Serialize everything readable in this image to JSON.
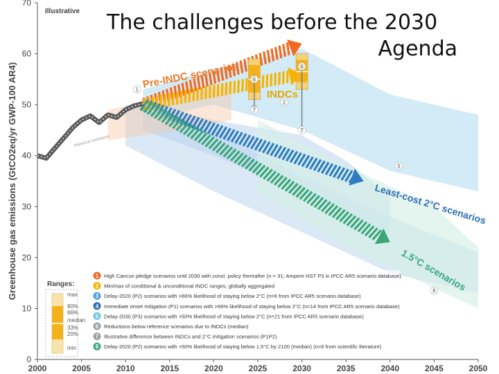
{
  "slide": {
    "title_line1": "The challenges before the 2030",
    "title_line2": "Agenda"
  },
  "chart_data": {
    "type": "line",
    "corner_label": "Illustrative",
    "ylabel": "Greenhouse gas emissions (GtCO2eq/yr GWP-100 AR4)",
    "xlabel": "",
    "xlim": [
      2000,
      2050
    ],
    "ylim": [
      0,
      70
    ],
    "x_ticks": [
      2000,
      2005,
      2010,
      2015,
      2020,
      2025,
      2030,
      2035,
      2040,
      2045,
      2050
    ],
    "y_ticks": [
      0,
      10,
      20,
      30,
      40,
      50,
      60,
      70
    ],
    "historical": {
      "name": "historical emissions",
      "x": [
        2000,
        2001,
        2002,
        2003,
        2004,
        2005,
        2006,
        2007,
        2008,
        2009,
        2010,
        2011,
        2012
      ],
      "y": [
        40,
        39.5,
        41.5,
        43.5,
        45.5,
        47,
        47.8,
        46.5,
        48,
        47.5,
        49,
        49.8,
        50.2
      ]
    },
    "series": [
      {
        "name": "Pre-INDC scenarios",
        "color": "#f26a21",
        "x": [
          2012,
          2030
        ],
        "y": [
          50,
          62
        ]
      },
      {
        "name": "INDCs",
        "color": "#f5b400",
        "x": [
          2012,
          2025,
          2030
        ],
        "y": [
          50,
          55.5,
          56
        ]
      },
      {
        "name": "Least-cost 2°C scenarios",
        "color": "#2e7dc0",
        "x": [
          2012,
          2037
        ],
        "y": [
          50,
          35
        ]
      },
      {
        "name": "1.5°C scenarios",
        "color": "#3aa77a",
        "x": [
          2012,
          2040
        ],
        "y": [
          50,
          23
        ]
      }
    ],
    "scenario_labels": [
      {
        "key": "pre",
        "text": "Pre-INDC scenarios"
      },
      {
        "key": "indc",
        "text": "INDCs"
      },
      {
        "key": "ls2",
        "text": "Least-cost 2°C scenarios"
      },
      {
        "key": "onefive",
        "text": "1.5°C scenarios"
      },
      {
        "key": "hist",
        "text": "Historical emissions"
      }
    ],
    "ranges_title": "Ranges:",
    "range_labels": [
      "max",
      "80%",
      "66%",
      "median",
      "33%",
      "20%",
      "min"
    ],
    "legend": [
      {
        "num": "1",
        "color": "#f26a21",
        "text": "High Cancun pledge scenarios until 2030 with const. policy thereafter (n = 31; Ampere HST P3 in IPCC AR5 scenario database)"
      },
      {
        "num": "2",
        "color": "#f5b400",
        "text": "Min/max of conditional & unconditional INDC ranges, globally aggregated"
      },
      {
        "num": "3",
        "color": "#4aa3d8",
        "text": "Delay-2020 (P2) scenarios with >66% likelihood of staying below 2°C (n=6 from IPCC AR5 scenario database)"
      },
      {
        "num": "4",
        "color": "#2e6fb5",
        "text": "Immediate onset mitigation (P1) scenarios with >66% likelihood of staying below 2°C (n=14 from IPCC AR5 scenario database)"
      },
      {
        "num": "5",
        "color": "#6bc3e6",
        "text": "Delay-2030 (P3) scenarios with >50% likelihood of staying below 2°C (n=21 from IPCC AR5 scenario database)"
      },
      {
        "num": "6",
        "color": "#9aa0a6",
        "text": "Reductions below reference scenarios due to INDCs (median)"
      },
      {
        "num": "7",
        "color": "#9aa0a6",
        "text": "Illustrative difference between INDCs and 2°C mitigation scenarios (P1P2)"
      },
      {
        "num": "8",
        "color": "#3aa77a",
        "text": "Delay-2020 (P2) scenarios with >50% likelihood of staying below 1.5°C by 2100 (median) (n=6 from scientific literature)"
      }
    ],
    "markers": [
      {
        "num": "1",
        "x": 2011.3,
        "y": 53
      },
      {
        "num": "2",
        "x": 2028,
        "y": 50.5
      },
      {
        "num": "5",
        "x": 2041,
        "y": 38
      },
      {
        "num": "6",
        "x": 2024.6,
        "y": 55
      },
      {
        "num": "6",
        "x": 2030,
        "y": 57.5
      },
      {
        "num": "7",
        "x": 2024.6,
        "y": 49
      },
      {
        "num": "7",
        "x": 2030,
        "y": 45
      },
      {
        "num": "8",
        "x": 2045,
        "y": 13.5
      }
    ],
    "colors": {
      "axis": "#555555",
      "text": "#333333"
    }
  }
}
